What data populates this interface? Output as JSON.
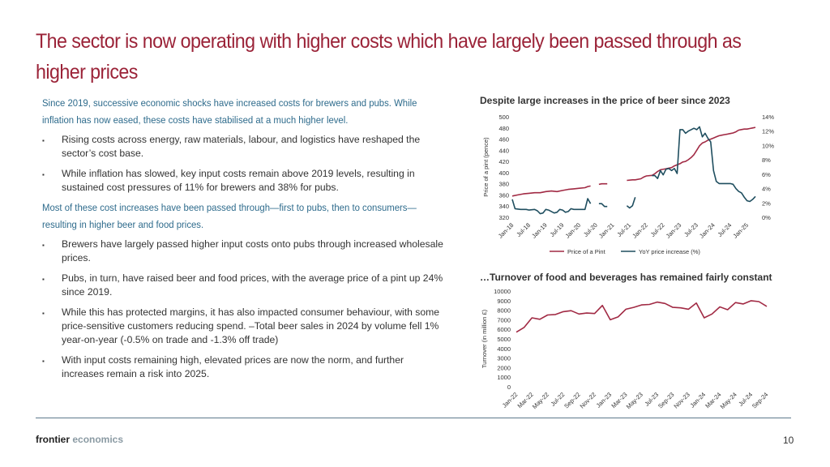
{
  "title": "The sector is now operating with higher costs which have largely been passed through as higher prices",
  "left": {
    "highlight1": "Since 2019, successive economic shocks have increased costs for brewers and pubs. While inflation has now eased, these costs have stabilised at a much higher level.",
    "bullets1": [
      "Rising costs across energy, raw materials, labour, and logistics have reshaped the sector’s cost base.",
      "While inflation has slowed, key input costs remain above 2019 levels, resulting in sustained cost pressures of 11% for brewers and 38% for pubs."
    ],
    "highlight2": "Most of these cost increases have been passed through—first to pubs, then to consumers—resulting in higher beer and food prices.",
    "bullets2": [
      "Brewers have largely passed higher input costs onto pubs through increased wholesale prices.",
      "Pubs, in turn, have raised beer and food prices, with the average price of a pint up 24% since 2019.",
      "While this has protected margins, it has also impacted consumer behaviour, with some price-sensitive customers reducing spend. –Total beer sales in 2024 by volume fell 1% year-on-year (-0.5% on trade and -1.3% off trade)",
      "With input costs remaining high, elevated prices are now the norm, and further increases remain a risk into 2025."
    ],
    "bullet_marker": "▪"
  },
  "footer": {
    "brand1": "frontier",
    "brand2": "economics",
    "page": "10"
  },
  "chart_data": [
    {
      "type": "line",
      "title": "Despite large increases in the price of beer since 2023",
      "ylabel": "Price of a pint (pence)",
      "ylim": [
        320,
        500
      ],
      "y_ticks": [
        500,
        480,
        460,
        440,
        420,
        400,
        380,
        360,
        340,
        320
      ],
      "y2lim": [
        0,
        14
      ],
      "y2_ticks": [
        "14%",
        "12%",
        "10%",
        "8%",
        "6%",
        "4%",
        "2%",
        "0%"
      ],
      "x_ticks": [
        "Jan-18",
        "Jul-18",
        "Jan-19",
        "Jul-19",
        "Jan-20",
        "Jul-20",
        "Jan-21",
        "Jul-21",
        "Jan-22",
        "Jul-22",
        "Jan-23",
        "Jul-23",
        "Jan-24",
        "Jul-24",
        "Jan-25"
      ],
      "legend": [
        "Price of a Pint",
        "YoY price increase (%)"
      ],
      "colors": [
        "#a12a44",
        "#1f4e5f"
      ],
      "series": [
        {
          "name": "Price of a Pint",
          "axis": "left",
          "segments": [
            [
              [
                0,
                358
              ],
              [
                2,
                360
              ],
              [
                4,
                362
              ],
              [
                6,
                363
              ],
              [
                8,
                364
              ],
              [
                10,
                364
              ],
              [
                12,
                366
              ],
              [
                14,
                367
              ],
              [
                16,
                366
              ],
              [
                18,
                368
              ],
              [
                20,
                370
              ],
              [
                22,
                371
              ],
              [
                24,
                372
              ],
              [
                26,
                373
              ],
              [
                27,
                375
              ],
              [
                28,
                376
              ]
            ],
            [
              [
                31,
                379
              ],
              [
                32,
                380
              ],
              [
                33,
                380
              ],
              [
                34,
                380
              ]
            ],
            [
              [
                41,
                386
              ],
              [
                43,
                387
              ],
              [
                44,
                387
              ],
              [
                46,
                389
              ],
              [
                47,
                392
              ],
              [
                48,
                394
              ],
              [
                50,
                395
              ],
              [
                51,
                398
              ],
              [
                52,
                402
              ],
              [
                53,
                405
              ],
              [
                55,
                407
              ],
              [
                56,
                408
              ],
              [
                57,
                409
              ],
              [
                58,
                412
              ],
              [
                59,
                414
              ],
              [
                60,
                416
              ],
              [
                61,
                419
              ],
              [
                62,
                420
              ],
              [
                63,
                423
              ],
              [
                64,
                427
              ],
              [
                65,
                432
              ],
              [
                66,
                440
              ],
              [
                67,
                448
              ],
              [
                68,
                453
              ],
              [
                69,
                455
              ],
              [
                70,
                458
              ],
              [
                71,
                460
              ],
              [
                72,
                462
              ],
              [
                73,
                464
              ],
              [
                74,
                466
              ],
              [
                75,
                467
              ],
              [
                76,
                468
              ],
              [
                77,
                469
              ],
              [
                78,
                470
              ],
              [
                79,
                471
              ],
              [
                80,
                473
              ],
              [
                81,
                476
              ],
              [
                82,
                477
              ],
              [
                83,
                478
              ],
              [
                84,
                478
              ],
              [
                85,
                479
              ],
              [
                86,
                480
              ],
              [
                87,
                481
              ]
            ]
          ]
        },
        {
          "name": "YoY price increase (%)",
          "axis": "right",
          "segments": [
            [
              [
                0,
                2.5
              ],
              [
                1,
                1.2
              ],
              [
                3,
                1.1
              ],
              [
                5,
                1.1
              ],
              [
                6,
                1.0
              ],
              [
                8,
                1.1
              ],
              [
                9,
                0.9
              ],
              [
                10,
                0.5
              ],
              [
                11,
                0.6
              ],
              [
                12,
                1.1
              ],
              [
                13,
                1.0
              ],
              [
                14,
                0.8
              ],
              [
                15,
                0.6
              ],
              [
                16,
                0.7
              ],
              [
                17,
                1.1
              ],
              [
                18,
                1.0
              ],
              [
                19,
                0.7
              ],
              [
                20,
                0.8
              ],
              [
                21,
                1.2
              ],
              [
                22,
                1.1
              ],
              [
                24,
                1.1
              ],
              [
                26,
                1.1
              ],
              [
                27,
                2.6
              ],
              [
                28,
                1.9
              ]
            ],
            [
              [
                31,
                1.9
              ],
              [
                32,
                1.9
              ],
              [
                33,
                1.5
              ],
              [
                34,
                1.5
              ]
            ],
            [
              [
                41,
                1.6
              ],
              [
                42,
                1.3
              ],
              [
                43,
                1.6
              ],
              [
                44,
                2.8
              ]
            ],
            [
              [
                50,
                5.8
              ],
              [
                51,
                5.8
              ],
              [
                52,
                5.4
              ],
              [
                53,
                6.5
              ],
              [
                54,
                5.9
              ],
              [
                55,
                6.7
              ],
              [
                56,
                6.8
              ],
              [
                57,
                6.5
              ],
              [
                58,
                6.8
              ],
              [
                59,
                6.1
              ],
              [
                60,
                12.2
              ],
              [
                61,
                12.2
              ],
              [
                62,
                11.7
              ],
              [
                63,
                12.0
              ],
              [
                64,
                12.2
              ],
              [
                65,
                12.4
              ],
              [
                66,
                12.2
              ],
              [
                67,
                12.6
              ],
              [
                68,
                11.2
              ],
              [
                69,
                11.7
              ],
              [
                70,
                11.0
              ],
              [
                71,
                10.5
              ],
              [
                72,
                6.5
              ],
              [
                73,
                5.0
              ],
              [
                74,
                4.7
              ],
              [
                75,
                4.7
              ],
              [
                76,
                4.7
              ],
              [
                77,
                4.7
              ],
              [
                78,
                4.7
              ],
              [
                79,
                4.6
              ],
              [
                80,
                4.0
              ],
              [
                81,
                3.6
              ],
              [
                82,
                3.4
              ],
              [
                83,
                2.8
              ],
              [
                84,
                2.3
              ],
              [
                85,
                2.2
              ],
              [
                86,
                2.5
              ],
              [
                87,
                2.9
              ]
            ]
          ]
        }
      ]
    },
    {
      "type": "line",
      "title": "…Turnover of food and beverages has remained fairly constant",
      "ylabel": "Turnover (in million £)",
      "ylim": [
        0,
        10000
      ],
      "y_ticks": [
        10000,
        9000,
        8000,
        7000,
        6000,
        5000,
        4000,
        3000,
        2000,
        1000,
        0
      ],
      "x_ticks": [
        "Jan-22",
        "Mar-22",
        "May-22",
        "Jul-22",
        "Sep-22",
        "Nov-22",
        "Jan-23",
        "Mar-23",
        "May-23",
        "Jul-23",
        "Sep-23",
        "Nov-23",
        "Jan-24",
        "Mar-24",
        "May-24",
        "Jul-24",
        "Sep-24"
      ],
      "colors": [
        "#a12a44"
      ],
      "series": [
        {
          "name": "Turnover",
          "values": [
            5700,
            6200,
            7200,
            7050,
            7500,
            7550,
            7850,
            7950,
            7600,
            7700,
            7650,
            8500,
            7000,
            7300,
            8100,
            8300,
            8550,
            8600,
            8850,
            8700,
            8300,
            8250,
            8100,
            8750,
            7200,
            7600,
            8350,
            8050,
            8800,
            8650,
            8990,
            8900,
            8400
          ]
        }
      ]
    }
  ]
}
